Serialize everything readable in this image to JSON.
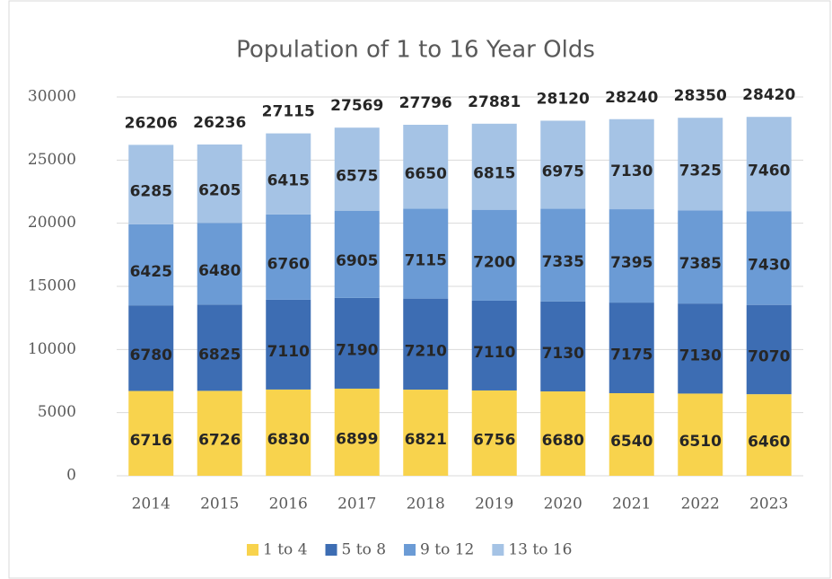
{
  "chart_data": {
    "type": "stacked_bar",
    "title": "Population of 1 to 16 Year Olds",
    "categories": [
      "2014",
      "2015",
      "2016",
      "2017",
      "2018",
      "2019",
      "2020",
      "2021",
      "2022",
      "2023"
    ],
    "series": [
      {
        "name": "1 to 4",
        "color": "#f8d34d",
        "values": [
          6716,
          6726,
          6830,
          6899,
          6821,
          6756,
          6680,
          6540,
          6510,
          6460
        ]
      },
      {
        "name": "5 to 8",
        "color": "#3d6db3",
        "values": [
          6780,
          6825,
          7110,
          7190,
          7210,
          7110,
          7130,
          7175,
          7130,
          7070
        ]
      },
      {
        "name": "9 to 12",
        "color": "#6b9bd5",
        "values": [
          6425,
          6480,
          6760,
          6905,
          7115,
          7200,
          7335,
          7395,
          7385,
          7430
        ]
      },
      {
        "name": "13 to 16",
        "color": "#a5c3e5",
        "values": [
          6285,
          6205,
          6415,
          6575,
          6650,
          6815,
          6975,
          7130,
          7325,
          7460
        ]
      }
    ],
    "totals": [
      26206,
      26236,
      27115,
      27569,
      27796,
      27881,
      28120,
      28240,
      28350,
      28420
    ],
    "ylim": [
      0,
      30000
    ],
    "yticks": [
      0,
      5000,
      10000,
      15000,
      20000,
      25000,
      30000
    ],
    "grid": true,
    "legend": "bottom"
  }
}
